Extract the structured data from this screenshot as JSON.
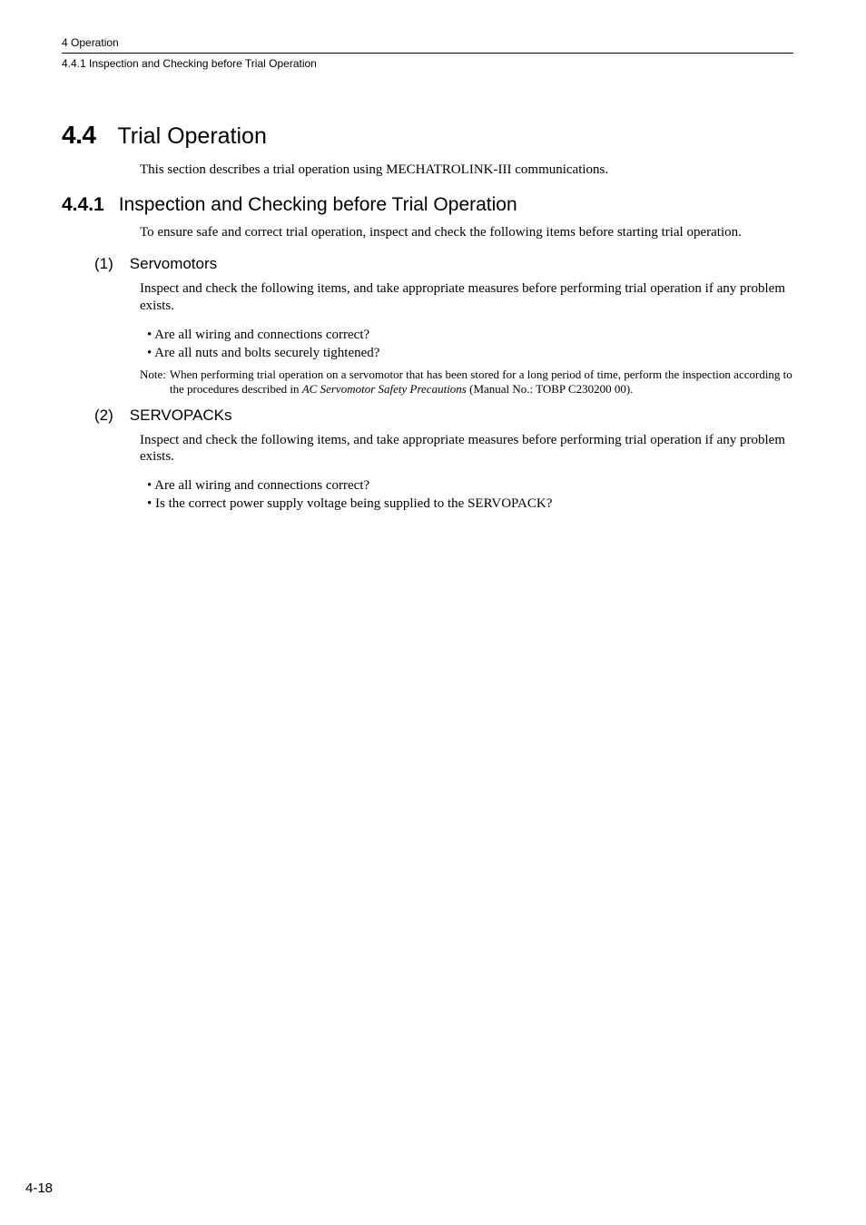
{
  "header": {
    "chapter": "4  Operation",
    "subsection": "4.4.1  Inspection and Checking before Trial Operation"
  },
  "section": {
    "number": "4.4",
    "title": "Trial Operation",
    "intro": "This section describes a trial operation using MECHATROLINK-III communications."
  },
  "sub441": {
    "number": "4.4.1",
    "title": "Inspection and Checking before Trial Operation",
    "intro": "To ensure safe and correct trial operation, inspect and check the following items before starting trial operation."
  },
  "servomotors": {
    "num": "(1)",
    "title": "Servomotors",
    "para": "Inspect and check the following items, and take appropriate measures before performing trial operation if any problem exists.",
    "bullets": [
      "• Are all wiring and connections correct?",
      "• Are all nuts and bolts securely tightened?"
    ],
    "note_label": "Note:",
    "note_pre": "When performing trial operation on a servomotor that has been stored for a long period of time, perform the inspection according to the procedures described in ",
    "note_italic": "AC Servomotor Safety Precautions",
    "note_post": " (Manual No.: TOBP C230200 00)."
  },
  "servopacks": {
    "num": "(2)",
    "title": "SERVOPACKs",
    "para": "Inspect and check the following items, and take appropriate measures before performing trial operation if any problem exists.",
    "bullets": [
      "• Are all wiring and connections correct?",
      "• Is the correct power supply voltage being supplied to the SERVOPACK?"
    ]
  },
  "page_number": "4-18"
}
